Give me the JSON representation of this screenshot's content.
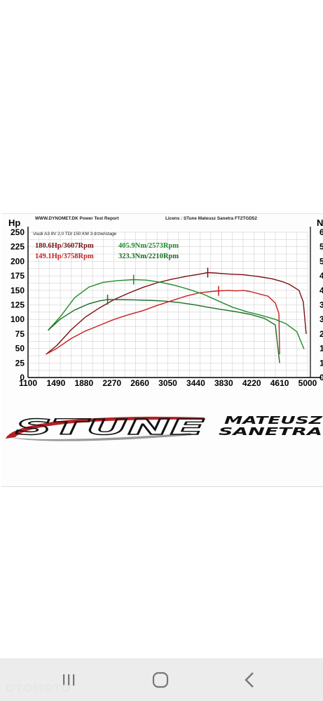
{
  "header": {
    "report_title": "WWW.DYNOMET.DK  Power Test Report",
    "licens": "Licens :  STune Mateusz Sanetra  FT2TGD52",
    "car": "\\Audi A3 8V 2.0 TDI 150 KM 3 drzwi\\stage"
  },
  "summary": {
    "hp_tuned": "180.6Hp/3607Rpm",
    "hp_stock": "149.1Hp/3758Rpm",
    "nm_tuned": "405.9Nm/2573Rpm",
    "nm_stock": "323.3Nm/2210Rpm"
  },
  "logo": {
    "brand": "STUNE",
    "line1": "MATEUSZ",
    "line2": "SANETRA"
  },
  "watermark": "OTOMOTO",
  "colors": {
    "tuned_hp": "#7a0f12",
    "stock_hp": "#c62020",
    "tuned_nm": "#1f8c2a",
    "stock_nm": "#1a6e24",
    "grid": "#c8c8c8"
  },
  "chart_data": {
    "type": "line",
    "ylabel": "Hp",
    "y2label": "N",
    "xlim": [
      1100,
      5000
    ],
    "ylim": [
      0,
      250
    ],
    "x_ticks": [
      1100,
      1490,
      1880,
      2270,
      2660,
      3050,
      3440,
      3830,
      4220,
      4610,
      5000
    ],
    "y_ticks": [
      0,
      25,
      50,
      75,
      100,
      125,
      150,
      175,
      200,
      225,
      250
    ],
    "y2_ticks": [
      "0",
      "1",
      "1",
      "2",
      "3",
      "3",
      "4",
      "4",
      "5",
      "5",
      "6"
    ],
    "grid": true,
    "series": [
      {
        "name": "180.6Hp/3607Rpm",
        "axis": "hp",
        "x": [
          1350,
          1500,
          1700,
          1900,
          2100,
          2300,
          2500,
          2700,
          2900,
          3100,
          3300,
          3500,
          3607,
          3700,
          3900,
          4100,
          4300,
          4500,
          4650,
          4750,
          4880,
          4940,
          4980
        ],
        "y": [
          40,
          55,
          82,
          104,
          120,
          134,
          145,
          155,
          163,
          169,
          174,
          178,
          180.6,
          180,
          178,
          177,
          174,
          170,
          165,
          160,
          150,
          130,
          75
        ]
      },
      {
        "name": "149.1Hp/3758Rpm",
        "axis": "hp",
        "x": [
          1350,
          1500,
          1700,
          1900,
          2100,
          2300,
          2500,
          2700,
          2900,
          3100,
          3300,
          3500,
          3758,
          3900,
          4000,
          4100,
          4200,
          4350,
          4450,
          4550,
          4600,
          4610
        ],
        "y": [
          40,
          50,
          67,
          80,
          90,
          100,
          108,
          115,
          124,
          132,
          140,
          146,
          149.1,
          150,
          149,
          150,
          148,
          143,
          140,
          128,
          110,
          40
        ]
      },
      {
        "name": "405.9Nm/2573Rpm",
        "axis": "nm",
        "x": [
          1380,
          1550,
          1750,
          1950,
          2150,
          2350,
          2573,
          2750,
          2950,
          3150,
          3350,
          3550,
          3750,
          3950,
          4150,
          4350,
          4550,
          4700,
          4850,
          4950
        ],
        "y": [
          196,
          252,
          331,
          375,
          395,
          402,
          405.9,
          404,
          395,
          382,
          365,
          345,
          318,
          292,
          273,
          258,
          241,
          223,
          190,
          118
        ]
      },
      {
        "name": "323.3Nm/2210Rpm",
        "axis": "nm",
        "x": [
          1380,
          1550,
          1750,
          1950,
          2100,
          2210,
          2400,
          2600,
          2800,
          3000,
          3200,
          3400,
          3600,
          3800,
          4000,
          4200,
          4400,
          4550,
          4610
        ],
        "y": [
          196,
          242,
          280,
          306,
          318,
          323.3,
          323,
          322,
          320,
          317,
          311,
          303,
          292,
          282,
          273,
          262,
          245,
          218,
          60
        ]
      }
    ],
    "markers": [
      {
        "series": "180.6Hp/3607Rpm",
        "x": 3607,
        "y": 180.6
      },
      {
        "series": "149.1Hp/3758Rpm",
        "x": 3758,
        "y": 149.1
      },
      {
        "series": "405.9Nm/2573Rpm",
        "x": 2573,
        "y": 405.9
      },
      {
        "series": "323.3Nm/2210Rpm",
        "x": 2210,
        "y": 323.3
      }
    ]
  }
}
